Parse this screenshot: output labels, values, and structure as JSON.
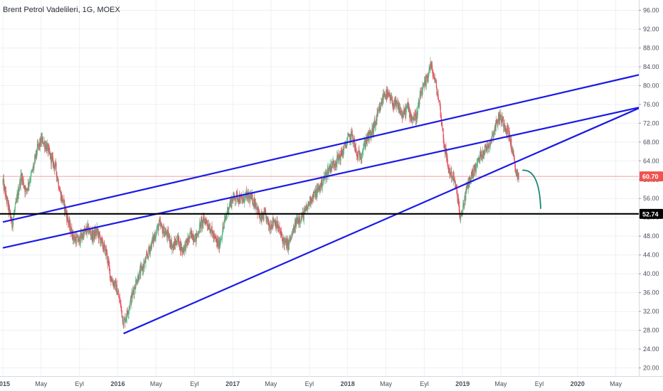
{
  "title": "Brent Petrol Vadelileri, 1G, MOEX",
  "colors": {
    "up": "#53b987",
    "down": "#eb4d5c",
    "trendline": "#1a1ae6",
    "support": "#000000",
    "current_price_line": "#f0a0a0",
    "current_price_badge": "#ef5350",
    "support_badge": "#000000",
    "projection_arrow": "#1a8a7a",
    "grid": "#eef0f3",
    "axis_text": "#4a4f5c"
  },
  "chart_data": {
    "type": "candlestick",
    "title": "Brent Petrol Vadelileri, 1G, MOEX",
    "ylim": [
      18,
      98
    ],
    "xlim": [
      2015.0,
      2020.75
    ],
    "y_ticks": [
      "96.00",
      "92.00",
      "88.00",
      "84.00",
      "80.00",
      "76.00",
      "72.00",
      "68.00",
      "64.00",
      "60.00",
      "56.00",
      "52.00",
      "48.00",
      "44.00",
      "40.00",
      "36.00",
      "32.00",
      "28.00",
      "24.00",
      "20.00"
    ],
    "x_ticks": [
      {
        "label": "2015",
        "x": 2015.0
      },
      {
        "label": "May",
        "x": 2015.333
      },
      {
        "label": "Eyl",
        "x": 2015.667
      },
      {
        "label": "2016",
        "x": 2016.0
      },
      {
        "label": "May",
        "x": 2016.333
      },
      {
        "label": "Eyl",
        "x": 2016.667
      },
      {
        "label": "2017",
        "x": 2017.0
      },
      {
        "label": "May",
        "x": 2017.333
      },
      {
        "label": "Eyl",
        "x": 2017.667
      },
      {
        "label": "2018",
        "x": 2018.0
      },
      {
        "label": "May",
        "x": 2018.333
      },
      {
        "label": "Eyl",
        "x": 2018.667
      },
      {
        "label": "2019",
        "x": 2019.0
      },
      {
        "label": "May",
        "x": 2019.333
      },
      {
        "label": "Eyl",
        "x": 2019.667
      },
      {
        "label": "2020",
        "x": 2020.0
      },
      {
        "label": "May",
        "x": 2020.333
      }
    ],
    "current_price": {
      "label": "60.70",
      "value": 60.7
    },
    "support_level": {
      "label": "52.74",
      "value": 52.74
    },
    "price_path": [
      [
        2015.0,
        59.5
      ],
      [
        2015.04,
        55.0
      ],
      [
        2015.08,
        50.5
      ],
      [
        2015.12,
        55.5
      ],
      [
        2015.16,
        61.0
      ],
      [
        2015.2,
        57.5
      ],
      [
        2015.26,
        62.0
      ],
      [
        2015.3,
        66.5
      ],
      [
        2015.34,
        68.5
      ],
      [
        2015.38,
        67.0
      ],
      [
        2015.42,
        64.5
      ],
      [
        2015.46,
        62.5
      ],
      [
        2015.5,
        57.0
      ],
      [
        2015.54,
        54.0
      ],
      [
        2015.58,
        50.0
      ],
      [
        2015.62,
        47.5
      ],
      [
        2015.66,
        47.0
      ],
      [
        2015.7,
        48.5
      ],
      [
        2015.74,
        49.5
      ],
      [
        2015.78,
        48.0
      ],
      [
        2015.82,
        49.0
      ],
      [
        2015.86,
        46.5
      ],
      [
        2015.9,
        44.5
      ],
      [
        2015.94,
        39.0
      ],
      [
        2015.98,
        37.5
      ],
      [
        2016.02,
        34.0
      ],
      [
        2016.05,
        29.5
      ],
      [
        2016.08,
        31.5
      ],
      [
        2016.12,
        35.0
      ],
      [
        2016.16,
        38.5
      ],
      [
        2016.2,
        40.5
      ],
      [
        2016.24,
        42.5
      ],
      [
        2016.28,
        45.5
      ],
      [
        2016.32,
        48.0
      ],
      [
        2016.36,
        50.5
      ],
      [
        2016.4,
        49.0
      ],
      [
        2016.44,
        48.0
      ],
      [
        2016.48,
        45.5
      ],
      [
        2016.52,
        47.5
      ],
      [
        2016.56,
        45.0
      ],
      [
        2016.6,
        46.5
      ],
      [
        2016.64,
        48.5
      ],
      [
        2016.68,
        47.5
      ],
      [
        2016.72,
        50.5
      ],
      [
        2016.76,
        51.5
      ],
      [
        2016.8,
        50.0
      ],
      [
        2016.84,
        47.5
      ],
      [
        2016.88,
        46.0
      ],
      [
        2016.92,
        50.0
      ],
      [
        2016.96,
        54.0
      ],
      [
        2017.0,
        56.0
      ],
      [
        2017.04,
        56.5
      ],
      [
        2017.08,
        55.5
      ],
      [
        2017.12,
        56.5
      ],
      [
        2017.16,
        56.0
      ],
      [
        2017.2,
        55.0
      ],
      [
        2017.24,
        51.5
      ],
      [
        2017.28,
        52.5
      ],
      [
        2017.32,
        50.0
      ],
      [
        2017.36,
        51.5
      ],
      [
        2017.4,
        49.5
      ],
      [
        2017.44,
        47.0
      ],
      [
        2017.48,
        46.0
      ],
      [
        2017.52,
        48.5
      ],
      [
        2017.56,
        51.5
      ],
      [
        2017.6,
        52.0
      ],
      [
        2017.64,
        53.5
      ],
      [
        2017.68,
        56.0
      ],
      [
        2017.72,
        57.0
      ],
      [
        2017.76,
        58.5
      ],
      [
        2017.8,
        60.5
      ],
      [
        2017.84,
        62.5
      ],
      [
        2017.88,
        63.5
      ],
      [
        2017.92,
        64.5
      ],
      [
        2017.96,
        66.0
      ],
      [
        2018.0,
        68.5
      ],
      [
        2018.04,
        69.5
      ],
      [
        2018.08,
        65.0
      ],
      [
        2018.12,
        65.5
      ],
      [
        2018.16,
        68.5
      ],
      [
        2018.2,
        69.5
      ],
      [
        2018.24,
        72.0
      ],
      [
        2018.28,
        75.0
      ],
      [
        2018.32,
        78.5
      ],
      [
        2018.36,
        77.5
      ],
      [
        2018.4,
        76.0
      ],
      [
        2018.44,
        75.5
      ],
      [
        2018.48,
        73.5
      ],
      [
        2018.52,
        75.5
      ],
      [
        2018.56,
        73.0
      ],
      [
        2018.6,
        73.5
      ],
      [
        2018.64,
        78.5
      ],
      [
        2018.68,
        80.5
      ],
      [
        2018.72,
        84.5
      ],
      [
        2018.76,
        81.0
      ],
      [
        2018.8,
        76.0
      ],
      [
        2018.84,
        67.5
      ],
      [
        2018.88,
        62.0
      ],
      [
        2018.92,
        60.5
      ],
      [
        2018.96,
        56.0
      ],
      [
        2018.98,
        51.0
      ],
      [
        2019.01,
        55.0
      ],
      [
        2019.04,
        58.5
      ],
      [
        2019.08,
        61.0
      ],
      [
        2019.12,
        63.0
      ],
      [
        2019.16,
        65.5
      ],
      [
        2019.2,
        66.5
      ],
      [
        2019.24,
        68.0
      ],
      [
        2019.28,
        71.0
      ],
      [
        2019.32,
        73.5
      ],
      [
        2019.36,
        72.0
      ],
      [
        2019.4,
        70.0
      ],
      [
        2019.43,
        66.5
      ],
      [
        2019.46,
        62.0
      ],
      [
        2019.49,
        60.7
      ]
    ],
    "trendlines": [
      {
        "name": "upper-channel",
        "points": [
          [
            2015.0,
            51.0
          ],
          [
            2020.75,
            83.5
          ]
        ]
      },
      {
        "name": "middle-channel",
        "points": [
          [
            2015.0,
            45.5
          ],
          [
            2020.75,
            76.5
          ]
        ]
      },
      {
        "name": "rising-support",
        "points": [
          [
            2016.05,
            27.3
          ],
          [
            2020.75,
            77.5
          ]
        ]
      }
    ],
    "projection": {
      "from": [
        2019.52,
        62.0
      ],
      "to": [
        2019.68,
        53.8
      ]
    }
  }
}
